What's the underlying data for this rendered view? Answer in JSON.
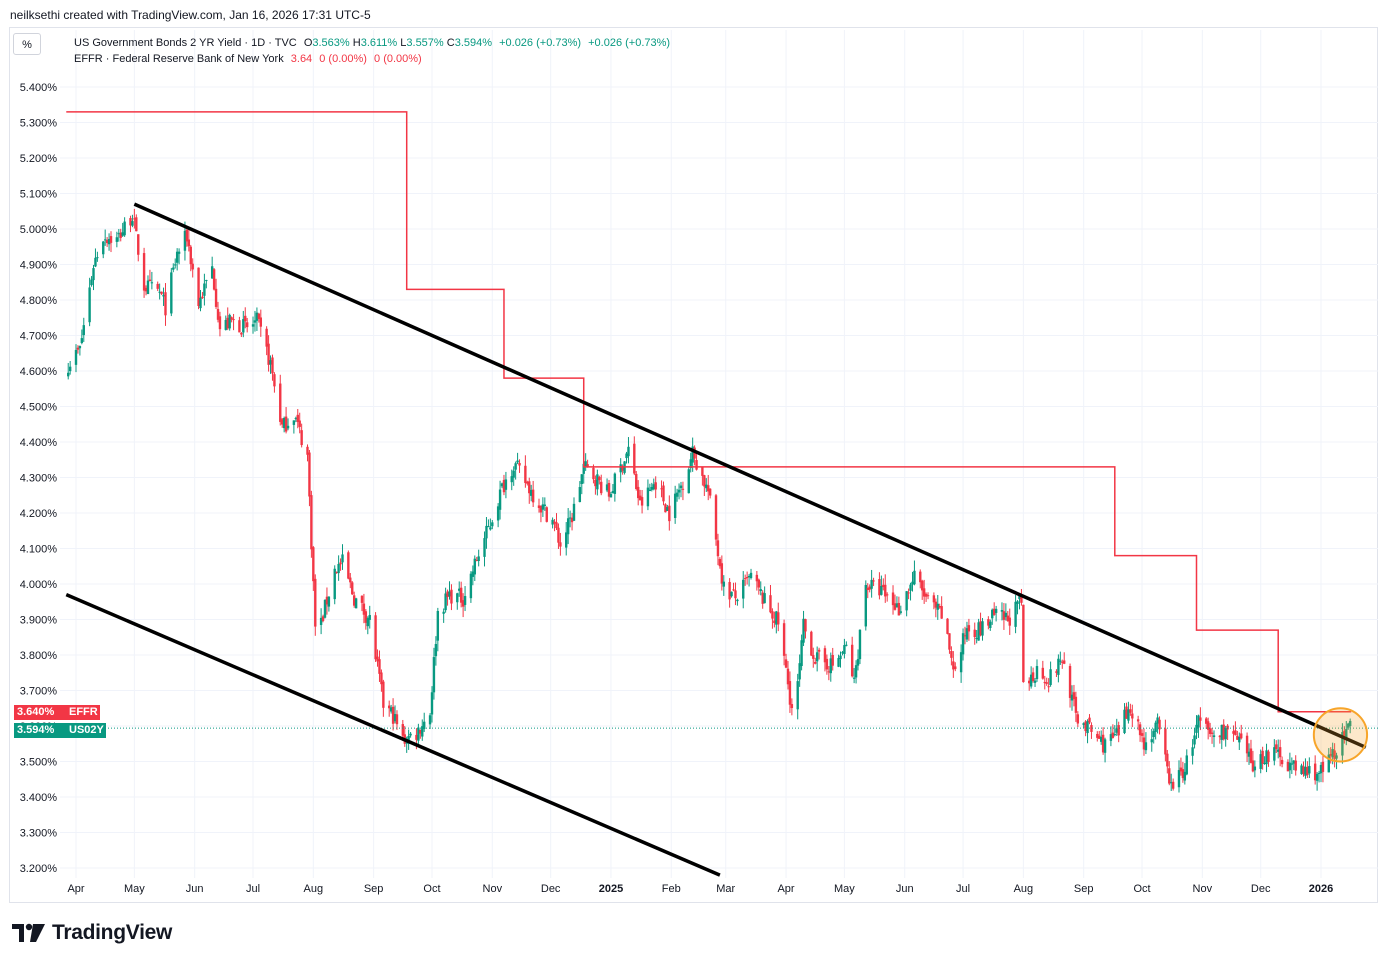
{
  "credit": "neilksethi created with TradingView.com, Jan 16, 2026 17:31 UTC-5",
  "scale_button": "%",
  "legend": {
    "line1": {
      "symbol": "US Government Bonds 2 YR Yield · 1D · TVC",
      "o_label": "O",
      "o_value": "3.563%",
      "h_label": "H",
      "h_value": "3.611%",
      "l_label": "L",
      "l_value": "3.557%",
      "c_label": "C",
      "c_value": "3.594%",
      "change": "+0.026 (+0.73%)",
      "change2": "+0.026 (+0.73%)"
    },
    "line2": {
      "symbol": "EFFR · Federal Reserve Bank of New York",
      "value": "3.64",
      "change": "0 (0.00%)",
      "change2": "0 (0.00%)"
    }
  },
  "price_tags": {
    "effr": {
      "value": "3.640%",
      "label": "EFFR",
      "color": "#f23645"
    },
    "us02y": {
      "value": "3.594%",
      "label": "US02Y",
      "color": "#089981"
    }
  },
  "brand": "TradingView",
  "colors": {
    "up": "#089981",
    "down": "#f23645",
    "effr": "#f23645",
    "trendline": "#000000",
    "highlight": "#f7a52a"
  },
  "chart_data": {
    "type": "candlestick",
    "title": "",
    "ylabel": "",
    "ylim": [
      3.18,
      5.46
    ],
    "y_ticks": [
      "5.400%",
      "5.300%",
      "5.200%",
      "5.100%",
      "5.000%",
      "4.900%",
      "4.800%",
      "4.700%",
      "4.600%",
      "4.500%",
      "4.400%",
      "4.300%",
      "4.200%",
      "4.100%",
      "4.000%",
      "3.900%",
      "3.800%",
      "3.700%",
      "3.600%",
      "3.500%",
      "3.400%",
      "3.300%",
      "3.200%"
    ],
    "y_tick_values": [
      5.4,
      5.3,
      5.2,
      5.1,
      5.0,
      4.9,
      4.8,
      4.7,
      4.6,
      4.5,
      4.4,
      4.3,
      4.2,
      4.1,
      4.0,
      3.9,
      3.8,
      3.7,
      3.6,
      3.5,
      3.4,
      3.3,
      3.2
    ],
    "xlim": [
      "2024-03-27",
      "2026-01-24"
    ],
    "x_ticks": [
      {
        "label": "Apr",
        "date": "2024-04-01",
        "bold": false
      },
      {
        "label": "May",
        "date": "2024-05-01",
        "bold": false
      },
      {
        "label": "Jun",
        "date": "2024-06-01",
        "bold": false
      },
      {
        "label": "Jul",
        "date": "2024-07-01",
        "bold": false
      },
      {
        "label": "Aug",
        "date": "2024-08-01",
        "bold": false
      },
      {
        "label": "Sep",
        "date": "2024-09-01",
        "bold": false
      },
      {
        "label": "Oct",
        "date": "2024-10-01",
        "bold": false
      },
      {
        "label": "Nov",
        "date": "2024-11-01",
        "bold": false
      },
      {
        "label": "Dec",
        "date": "2024-12-01",
        "bold": false
      },
      {
        "label": "2025",
        "date": "2025-01-01",
        "bold": true
      },
      {
        "label": "Feb",
        "date": "2025-02-01",
        "bold": false
      },
      {
        "label": "Mar",
        "date": "2025-03-01",
        "bold": false
      },
      {
        "label": "Apr",
        "date": "2025-04-01",
        "bold": false
      },
      {
        "label": "May",
        "date": "2025-05-01",
        "bold": false
      },
      {
        "label": "Jun",
        "date": "2025-06-01",
        "bold": false
      },
      {
        "label": "Jul",
        "date": "2025-07-01",
        "bold": false
      },
      {
        "label": "Aug",
        "date": "2025-08-01",
        "bold": false
      },
      {
        "label": "Sep",
        "date": "2025-09-01",
        "bold": false
      },
      {
        "label": "Oct",
        "date": "2025-10-01",
        "bold": false
      },
      {
        "label": "Nov",
        "date": "2025-11-01",
        "bold": false
      },
      {
        "label": "Dec",
        "date": "2025-12-01",
        "bold": false
      },
      {
        "label": "2026",
        "date": "2026-01-01",
        "bold": true
      }
    ],
    "series": [
      {
        "name": "US Government Bonds 2 YR Yield",
        "kind": "daily close (approx.)",
        "points": [
          [
            "2024-03-28",
            4.62
          ],
          [
            "2024-04-03",
            4.66
          ],
          [
            "2024-04-10",
            4.9
          ],
          [
            "2024-04-15",
            4.98
          ],
          [
            "2024-04-22",
            4.97
          ],
          [
            "2024-04-30",
            5.04
          ],
          [
            "2024-05-06",
            4.84
          ],
          [
            "2024-05-14",
            4.82
          ],
          [
            "2024-05-17",
            4.78
          ],
          [
            "2024-05-23",
            4.93
          ],
          [
            "2024-05-28",
            4.98
          ],
          [
            "2024-06-03",
            4.79
          ],
          [
            "2024-06-10",
            4.89
          ],
          [
            "2024-06-14",
            4.72
          ],
          [
            "2024-06-20",
            4.74
          ],
          [
            "2024-06-28",
            4.72
          ],
          [
            "2024-07-03",
            4.74
          ],
          [
            "2024-07-10",
            4.62
          ],
          [
            "2024-07-16",
            4.44
          ],
          [
            "2024-07-22",
            4.48
          ],
          [
            "2024-07-29",
            4.36
          ],
          [
            "2024-08-02",
            3.88
          ],
          [
            "2024-08-05",
            3.89
          ],
          [
            "2024-08-12",
            4.04
          ],
          [
            "2024-08-16",
            4.06
          ],
          [
            "2024-08-22",
            3.96
          ],
          [
            "2024-08-30",
            3.9
          ],
          [
            "2024-09-06",
            3.66
          ],
          [
            "2024-09-11",
            3.63
          ],
          [
            "2024-09-16",
            3.56
          ],
          [
            "2024-09-23",
            3.58
          ],
          [
            "2024-09-30",
            3.64
          ],
          [
            "2024-10-04",
            3.92
          ],
          [
            "2024-10-10",
            3.97
          ],
          [
            "2024-10-17",
            3.96
          ],
          [
            "2024-10-24",
            4.07
          ],
          [
            "2024-10-31",
            4.17
          ],
          [
            "2024-11-06",
            4.27
          ],
          [
            "2024-11-12",
            4.34
          ],
          [
            "2024-11-19",
            4.28
          ],
          [
            "2024-11-26",
            4.22
          ],
          [
            "2024-12-02",
            4.18
          ],
          [
            "2024-12-06",
            4.11
          ],
          [
            "2024-12-12",
            4.19
          ],
          [
            "2024-12-18",
            4.33
          ],
          [
            "2024-12-24",
            4.3
          ],
          [
            "2024-12-31",
            4.25
          ],
          [
            "2025-01-10",
            4.38
          ],
          [
            "2025-01-16",
            4.22
          ],
          [
            "2025-01-24",
            4.29
          ],
          [
            "2025-01-31",
            4.2
          ],
          [
            "2025-02-07",
            4.29
          ],
          [
            "2025-02-12",
            4.37
          ],
          [
            "2025-02-20",
            4.26
          ],
          [
            "2025-02-28",
            3.99
          ],
          [
            "2025-03-06",
            3.96
          ],
          [
            "2025-03-14",
            4.02
          ],
          [
            "2025-03-21",
            3.95
          ],
          [
            "2025-03-28",
            3.89
          ],
          [
            "2025-04-04",
            3.65
          ],
          [
            "2025-04-07",
            3.71
          ],
          [
            "2025-04-10",
            3.88
          ],
          [
            "2025-04-16",
            3.79
          ],
          [
            "2025-04-25",
            3.77
          ],
          [
            "2025-05-02",
            3.82
          ],
          [
            "2025-05-06",
            3.72
          ],
          [
            "2025-05-12",
            4.0
          ],
          [
            "2025-05-20",
            3.98
          ],
          [
            "2025-05-29",
            3.93
          ],
          [
            "2025-06-06",
            4.02
          ],
          [
            "2025-06-13",
            3.95
          ],
          [
            "2025-06-20",
            3.91
          ],
          [
            "2025-06-27",
            3.75
          ],
          [
            "2025-07-03",
            3.88
          ],
          [
            "2025-07-10",
            3.87
          ],
          [
            "2025-07-17",
            3.91
          ],
          [
            "2025-07-24",
            3.9
          ],
          [
            "2025-07-31",
            3.95
          ],
          [
            "2025-08-01",
            3.7
          ],
          [
            "2025-08-08",
            3.76
          ],
          [
            "2025-08-14",
            3.73
          ],
          [
            "2025-08-21",
            3.79
          ],
          [
            "2025-08-28",
            3.63
          ],
          [
            "2025-09-04",
            3.59
          ],
          [
            "2025-09-11",
            3.55
          ],
          [
            "2025-09-18",
            3.57
          ],
          [
            "2025-09-25",
            3.66
          ],
          [
            "2025-10-02",
            3.55
          ],
          [
            "2025-10-09",
            3.6
          ],
          [
            "2025-10-16",
            3.43
          ],
          [
            "2025-10-23",
            3.48
          ],
          [
            "2025-10-30",
            3.61
          ],
          [
            "2025-11-06",
            3.57
          ],
          [
            "2025-11-13",
            3.59
          ],
          [
            "2025-11-20",
            3.55
          ],
          [
            "2025-11-27",
            3.49
          ],
          [
            "2025-12-04",
            3.52
          ],
          [
            "2025-12-11",
            3.52
          ],
          [
            "2025-12-18",
            3.48
          ],
          [
            "2025-12-26",
            3.47
          ],
          [
            "2026-01-02",
            3.47
          ],
          [
            "2026-01-08",
            3.53
          ],
          [
            "2026-01-16",
            3.594
          ]
        ]
      },
      {
        "name": "EFFR",
        "kind": "step",
        "points": [
          [
            "2024-03-27",
            5.33
          ],
          [
            "2024-09-18",
            4.83
          ],
          [
            "2024-11-07",
            4.58
          ],
          [
            "2024-12-18",
            4.33
          ],
          [
            "2025-09-17",
            4.08
          ],
          [
            "2025-10-29",
            3.87
          ],
          [
            "2025-12-10",
            3.64
          ],
          [
            "2026-01-16",
            3.64
          ]
        ]
      }
    ],
    "annotations": [
      {
        "type": "trendline",
        "from": [
          "2024-05-01",
          5.07
        ],
        "to": [
          "2026-01-24",
          3.54
        ]
      },
      {
        "type": "trendline",
        "from": [
          "2024-03-27",
          3.97
        ],
        "to": [
          "2025-02-26",
          3.18
        ]
      },
      {
        "type": "circle",
        "center": [
          "2026-01-11",
          3.575
        ],
        "radius_value": 0.06
      }
    ]
  }
}
